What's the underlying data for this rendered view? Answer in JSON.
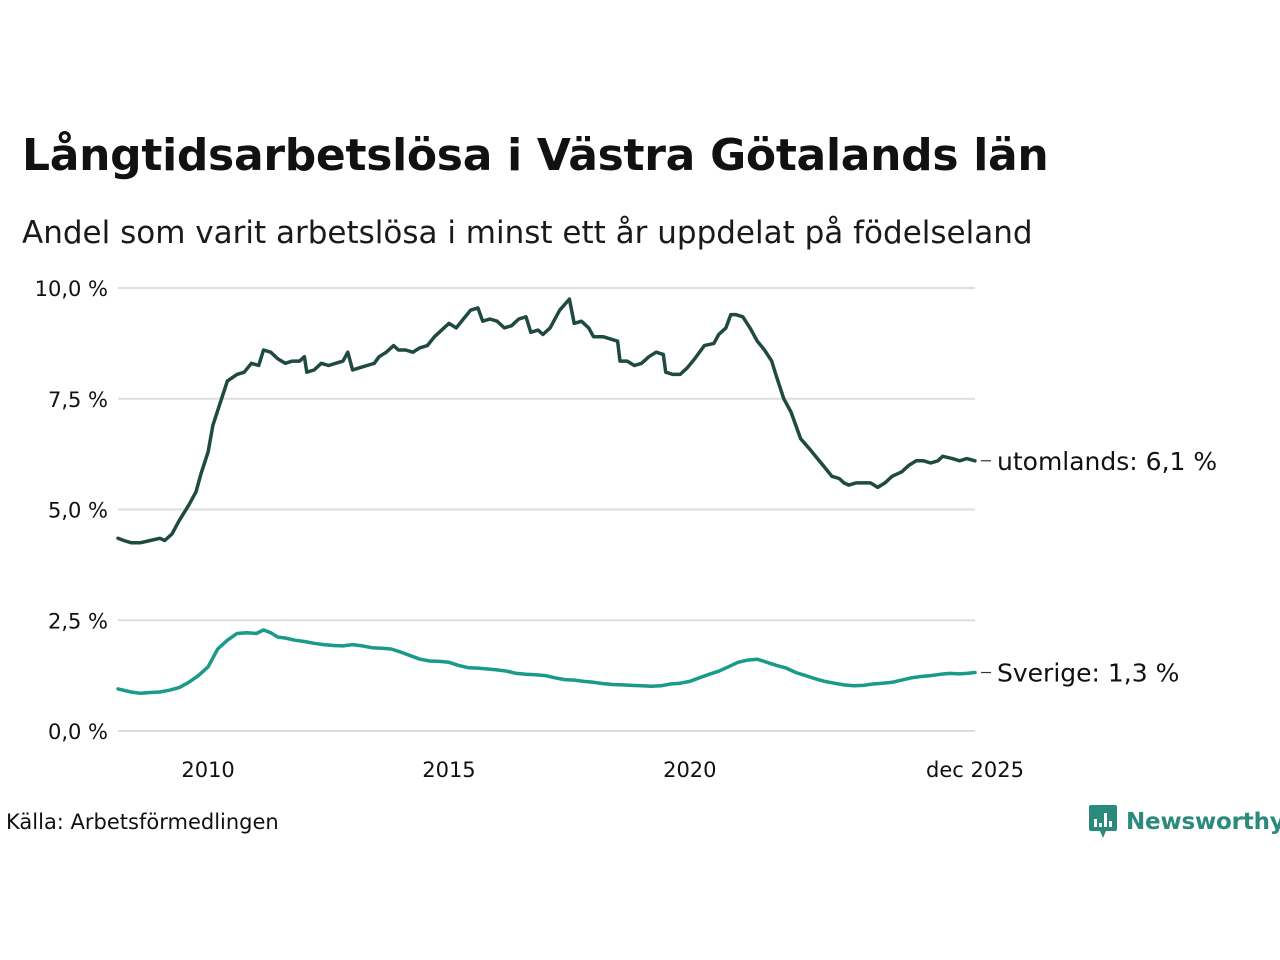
{
  "title": "Långtidsarbetslösa i Västra Götalands län",
  "subtitle": "Andel som varit arbetslösa i minst ett år uppdelat på födelseland",
  "source": "Källa: Arbetsförmedlingen",
  "brand": {
    "name": "Newsworthy",
    "icon": "newsworthy-logo-icon",
    "color": "#2a8a7c"
  },
  "colors": {
    "utomlands": "#1f4a42",
    "sverige": "#1a9a88",
    "grid": "#dddddd"
  },
  "chart_data": {
    "type": "line",
    "title": "Långtidsarbetslösa i Västra Götalands län",
    "xlabel": "",
    "ylabel": "",
    "xlim": [
      2008.13,
      2025.92
    ],
    "ylim": [
      0,
      10
    ],
    "y_ticks": [
      0,
      2.5,
      5,
      7.5,
      10
    ],
    "y_tick_labels": [
      "0,0 %",
      "2,5 %",
      "5,0 %",
      "7,5 %",
      "10,0 %"
    ],
    "x_ticks": [
      2010,
      2015,
      2020,
      2025.92
    ],
    "x_tick_labels": [
      "2010",
      "2015",
      "2020",
      "dec 2025"
    ],
    "grid": true,
    "series": [
      {
        "name": "utomlands",
        "label": "utomlands: 6,1 %",
        "color": "#1f4a42",
        "points": [
          [
            2008.13,
            4.35
          ],
          [
            2008.25,
            4.3
          ],
          [
            2008.4,
            4.25
          ],
          [
            2008.6,
            4.25
          ],
          [
            2008.8,
            4.3
          ],
          [
            2009.0,
            4.35
          ],
          [
            2009.1,
            4.3
          ],
          [
            2009.25,
            4.45
          ],
          [
            2009.4,
            4.75
          ],
          [
            2009.6,
            5.1
          ],
          [
            2009.75,
            5.4
          ],
          [
            2009.85,
            5.8
          ],
          [
            2010.0,
            6.3
          ],
          [
            2010.1,
            6.9
          ],
          [
            2010.25,
            7.4
          ],
          [
            2010.4,
            7.9
          ],
          [
            2010.6,
            8.05
          ],
          [
            2010.75,
            8.1
          ],
          [
            2010.9,
            8.3
          ],
          [
            2011.05,
            8.25
          ],
          [
            2011.15,
            8.6
          ],
          [
            2011.3,
            8.55
          ],
          [
            2011.45,
            8.4
          ],
          [
            2011.6,
            8.3
          ],
          [
            2011.75,
            8.35
          ],
          [
            2011.9,
            8.35
          ],
          [
            2012.0,
            8.45
          ],
          [
            2012.05,
            8.1
          ],
          [
            2012.2,
            8.15
          ],
          [
            2012.35,
            8.3
          ],
          [
            2012.5,
            8.25
          ],
          [
            2012.65,
            8.3
          ],
          [
            2012.8,
            8.35
          ],
          [
            2012.9,
            8.55
          ],
          [
            2013.0,
            8.15
          ],
          [
            2013.15,
            8.2
          ],
          [
            2013.3,
            8.25
          ],
          [
            2013.45,
            8.3
          ],
          [
            2013.55,
            8.45
          ],
          [
            2013.7,
            8.55
          ],
          [
            2013.85,
            8.7
          ],
          [
            2013.95,
            8.6
          ],
          [
            2014.1,
            8.6
          ],
          [
            2014.25,
            8.55
          ],
          [
            2014.4,
            8.65
          ],
          [
            2014.55,
            8.7
          ],
          [
            2014.7,
            8.9
          ],
          [
            2014.85,
            9.05
          ],
          [
            2015.0,
            9.2
          ],
          [
            2015.15,
            9.1
          ],
          [
            2015.3,
            9.3
          ],
          [
            2015.45,
            9.5
          ],
          [
            2015.6,
            9.55
          ],
          [
            2015.7,
            9.25
          ],
          [
            2015.85,
            9.3
          ],
          [
            2016.0,
            9.25
          ],
          [
            2016.15,
            9.1
          ],
          [
            2016.3,
            9.15
          ],
          [
            2016.45,
            9.3
          ],
          [
            2016.6,
            9.35
          ],
          [
            2016.7,
            9.0
          ],
          [
            2016.85,
            9.05
          ],
          [
            2016.95,
            8.95
          ],
          [
            2017.1,
            9.1
          ],
          [
            2017.3,
            9.5
          ],
          [
            2017.5,
            9.75
          ],
          [
            2017.6,
            9.2
          ],
          [
            2017.75,
            9.25
          ],
          [
            2017.9,
            9.1
          ],
          [
            2018.0,
            8.9
          ],
          [
            2018.2,
            8.9
          ],
          [
            2018.35,
            8.85
          ],
          [
            2018.5,
            8.8
          ],
          [
            2018.55,
            8.35
          ],
          [
            2018.7,
            8.35
          ],
          [
            2018.85,
            8.25
          ],
          [
            2019.0,
            8.3
          ],
          [
            2019.15,
            8.45
          ],
          [
            2019.3,
            8.55
          ],
          [
            2019.45,
            8.5
          ],
          [
            2019.5,
            8.1
          ],
          [
            2019.65,
            8.05
          ],
          [
            2019.8,
            8.05
          ],
          [
            2019.95,
            8.2
          ],
          [
            2020.1,
            8.4
          ],
          [
            2020.3,
            8.7
          ],
          [
            2020.5,
            8.75
          ],
          [
            2020.6,
            8.95
          ],
          [
            2020.75,
            9.1
          ],
          [
            2020.85,
            9.4
          ],
          [
            2020.95,
            9.4
          ],
          [
            2021.1,
            9.35
          ],
          [
            2021.25,
            9.1
          ],
          [
            2021.4,
            8.8
          ],
          [
            2021.55,
            8.6
          ],
          [
            2021.7,
            8.35
          ],
          [
            2021.8,
            8.0
          ],
          [
            2021.95,
            7.5
          ],
          [
            2022.1,
            7.2
          ],
          [
            2022.3,
            6.6
          ],
          [
            2022.5,
            6.35
          ],
          [
            2022.65,
            6.15
          ],
          [
            2022.8,
            5.95
          ],
          [
            2022.95,
            5.75
          ],
          [
            2023.1,
            5.7
          ],
          [
            2023.2,
            5.6
          ],
          [
            2023.3,
            5.55
          ],
          [
            2023.45,
            5.6
          ],
          [
            2023.6,
            5.6
          ],
          [
            2023.75,
            5.6
          ],
          [
            2023.9,
            5.5
          ],
          [
            2024.05,
            5.6
          ],
          [
            2024.2,
            5.75
          ],
          [
            2024.4,
            5.85
          ],
          [
            2024.55,
            6.0
          ],
          [
            2024.7,
            6.1
          ],
          [
            2024.85,
            6.1
          ],
          [
            2025.0,
            6.05
          ],
          [
            2025.15,
            6.1
          ],
          [
            2025.25,
            6.2
          ],
          [
            2025.45,
            6.15
          ],
          [
            2025.6,
            6.1
          ],
          [
            2025.75,
            6.15
          ],
          [
            2025.92,
            6.1
          ]
        ]
      },
      {
        "name": "Sverige",
        "label": "Sverige: 1,3 %",
        "color": "#1a9a88",
        "points": [
          [
            2008.13,
            0.95
          ],
          [
            2008.4,
            0.88
          ],
          [
            2008.6,
            0.85
          ],
          [
            2008.8,
            0.87
          ],
          [
            2009.0,
            0.88
          ],
          [
            2009.2,
            0.92
          ],
          [
            2009.4,
            0.98
          ],
          [
            2009.6,
            1.1
          ],
          [
            2009.8,
            1.25
          ],
          [
            2010.0,
            1.45
          ],
          [
            2010.2,
            1.85
          ],
          [
            2010.4,
            2.05
          ],
          [
            2010.6,
            2.2
          ],
          [
            2010.8,
            2.22
          ],
          [
            2011.0,
            2.2
          ],
          [
            2011.15,
            2.28
          ],
          [
            2011.3,
            2.22
          ],
          [
            2011.45,
            2.12
          ],
          [
            2011.6,
            2.1
          ],
          [
            2011.8,
            2.05
          ],
          [
            2012.0,
            2.02
          ],
          [
            2012.2,
            1.98
          ],
          [
            2012.4,
            1.95
          ],
          [
            2012.6,
            1.93
          ],
          [
            2012.8,
            1.92
          ],
          [
            2013.0,
            1.95
          ],
          [
            2013.2,
            1.92
          ],
          [
            2013.4,
            1.88
          ],
          [
            2013.6,
            1.87
          ],
          [
            2013.8,
            1.85
          ],
          [
            2014.0,
            1.78
          ],
          [
            2014.2,
            1.7
          ],
          [
            2014.4,
            1.62
          ],
          [
            2014.6,
            1.58
          ],
          [
            2014.8,
            1.57
          ],
          [
            2015.0,
            1.55
          ],
          [
            2015.2,
            1.48
          ],
          [
            2015.4,
            1.43
          ],
          [
            2015.6,
            1.42
          ],
          [
            2015.8,
            1.4
          ],
          [
            2016.0,
            1.38
          ],
          [
            2016.2,
            1.35
          ],
          [
            2016.4,
            1.3
          ],
          [
            2016.6,
            1.28
          ],
          [
            2016.8,
            1.27
          ],
          [
            2017.0,
            1.25
          ],
          [
            2017.2,
            1.2
          ],
          [
            2017.4,
            1.16
          ],
          [
            2017.6,
            1.15
          ],
          [
            2017.8,
            1.12
          ],
          [
            2018.0,
            1.1
          ],
          [
            2018.2,
            1.07
          ],
          [
            2018.4,
            1.05
          ],
          [
            2018.6,
            1.04
          ],
          [
            2018.8,
            1.03
          ],
          [
            2019.0,
            1.02
          ],
          [
            2019.2,
            1.01
          ],
          [
            2019.4,
            1.02
          ],
          [
            2019.6,
            1.06
          ],
          [
            2019.8,
            1.08
          ],
          [
            2020.0,
            1.12
          ],
          [
            2020.2,
            1.2
          ],
          [
            2020.4,
            1.28
          ],
          [
            2020.6,
            1.35
          ],
          [
            2020.8,
            1.45
          ],
          [
            2021.0,
            1.55
          ],
          [
            2021.2,
            1.6
          ],
          [
            2021.4,
            1.62
          ],
          [
            2021.6,
            1.55
          ],
          [
            2021.8,
            1.48
          ],
          [
            2022.0,
            1.42
          ],
          [
            2022.2,
            1.32
          ],
          [
            2022.4,
            1.25
          ],
          [
            2022.6,
            1.18
          ],
          [
            2022.8,
            1.12
          ],
          [
            2023.0,
            1.08
          ],
          [
            2023.2,
            1.04
          ],
          [
            2023.4,
            1.02
          ],
          [
            2023.6,
            1.03
          ],
          [
            2023.8,
            1.06
          ],
          [
            2024.0,
            1.08
          ],
          [
            2024.2,
            1.1
          ],
          [
            2024.4,
            1.15
          ],
          [
            2024.6,
            1.2
          ],
          [
            2024.8,
            1.23
          ],
          [
            2025.0,
            1.25
          ],
          [
            2025.2,
            1.28
          ],
          [
            2025.4,
            1.3
          ],
          [
            2025.6,
            1.29
          ],
          [
            2025.75,
            1.3
          ],
          [
            2025.92,
            1.32
          ]
        ]
      }
    ]
  }
}
